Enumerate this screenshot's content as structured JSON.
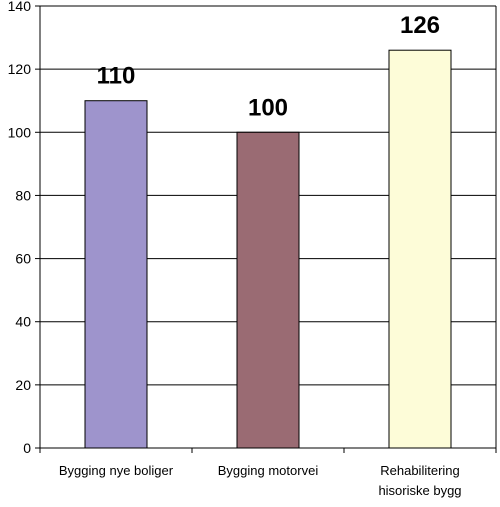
{
  "chart_data": {
    "type": "bar",
    "title": "",
    "xlabel": "",
    "ylabel": "",
    "ylim": [
      0,
      140
    ],
    "ytick_step": 20,
    "grid": true,
    "legend": "none",
    "categories": [
      [
        "Bygging nye boliger"
      ],
      [
        "Bygging motorvei"
      ],
      [
        "Rehabilitering",
        "hisoriske bygg"
      ]
    ],
    "values": [
      110,
      100,
      126
    ],
    "data_labels": [
      "110",
      "100",
      "126"
    ],
    "colors": [
      "#9e94cc",
      "#9a6b73",
      "#fdfcd8"
    ]
  }
}
